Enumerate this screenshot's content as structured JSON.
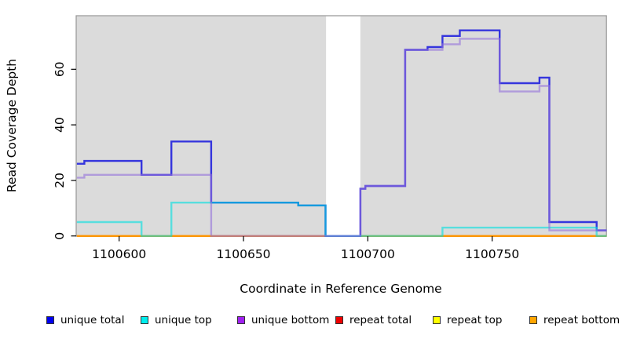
{
  "chart_data": {
    "type": "line",
    "subtype": "step-coverage-plot",
    "title": "",
    "xlabel": "Coordinate in Reference Genome",
    "ylabel": "Read Coverage Depth",
    "xlim": [
      1100583,
      1100796
    ],
    "ylim": [
      0,
      79
    ],
    "x_ticks": [
      1100600,
      1100650,
      1100700,
      1100750
    ],
    "y_ticks": [
      0,
      20,
      40,
      60
    ],
    "grid": false,
    "plot_bg": "#DBDBDB",
    "no_data_region": {
      "from": 1100683,
      "to": 1100697
    },
    "legend_position": "bottom",
    "series": [
      {
        "name": "repeat total",
        "color": "#DD0000",
        "opacity": 0.9,
        "width": 2,
        "points": [
          [
            1100583,
            0
          ],
          [
            1100796,
            0
          ]
        ]
      },
      {
        "name": "repeat top",
        "color": "#EEEE00",
        "opacity": 0.9,
        "width": 2,
        "points": [
          [
            1100583,
            0
          ],
          [
            1100796,
            0
          ]
        ]
      },
      {
        "name": "repeat bottom",
        "color": "#FF9500",
        "opacity": 1,
        "width": 2.4,
        "points": [
          [
            1100583,
            0
          ],
          [
            1100796,
            0
          ]
        ]
      },
      {
        "name": "unique total",
        "color": "#2222DD",
        "opacity": 0.9,
        "width": 2.4,
        "points": [
          [
            1100583,
            26
          ],
          [
            1100586,
            27
          ],
          [
            1100609,
            22
          ],
          [
            1100621,
            34
          ],
          [
            1100637,
            12
          ],
          [
            1100672,
            11
          ],
          [
            1100683,
            0
          ],
          [
            1100697,
            17
          ],
          [
            1100699,
            18
          ],
          [
            1100715,
            67
          ],
          [
            1100724,
            68
          ],
          [
            1100730,
            72
          ],
          [
            1100737,
            74
          ],
          [
            1100753,
            55
          ],
          [
            1100769,
            57
          ],
          [
            1100773,
            5
          ],
          [
            1100792,
            2
          ],
          [
            1100796,
            2
          ]
        ]
      },
      {
        "name": "unique top",
        "color": "#00DFDF",
        "opacity": 0.6,
        "width": 2.4,
        "points": [
          [
            1100583,
            5
          ],
          [
            1100609,
            0
          ],
          [
            1100621,
            12
          ],
          [
            1100672,
            11
          ],
          [
            1100683,
            0
          ],
          [
            1100730,
            3
          ],
          [
            1100792,
            0
          ],
          [
            1100796,
            0
          ]
        ]
      },
      {
        "name": "unique bottom",
        "color": "#9370DB",
        "opacity": 0.6,
        "width": 2.4,
        "points": [
          [
            1100583,
            21
          ],
          [
            1100586,
            22
          ],
          [
            1100637,
            0
          ],
          [
            1100697,
            17
          ],
          [
            1100699,
            18
          ],
          [
            1100715,
            67
          ],
          [
            1100730,
            69
          ],
          [
            1100737,
            71
          ],
          [
            1100753,
            52
          ],
          [
            1100769,
            54
          ],
          [
            1100773,
            2
          ],
          [
            1100796,
            2
          ]
        ]
      }
    ]
  },
  "axes": {
    "x_label": "Coordinate in Reference Genome",
    "y_label": "Read Coverage Depth"
  },
  "legend": {
    "items": [
      {
        "label": "unique total",
        "color": "#0000EE"
      },
      {
        "label": "unique top",
        "color": "#00EEEE"
      },
      {
        "label": "unique bottom",
        "color": "#A020F0"
      },
      {
        "label": "repeat total",
        "color": "#EE0000"
      },
      {
        "label": "repeat top",
        "color": "#FFFF00"
      },
      {
        "label": "repeat bottom",
        "color": "#FFA500"
      }
    ]
  }
}
